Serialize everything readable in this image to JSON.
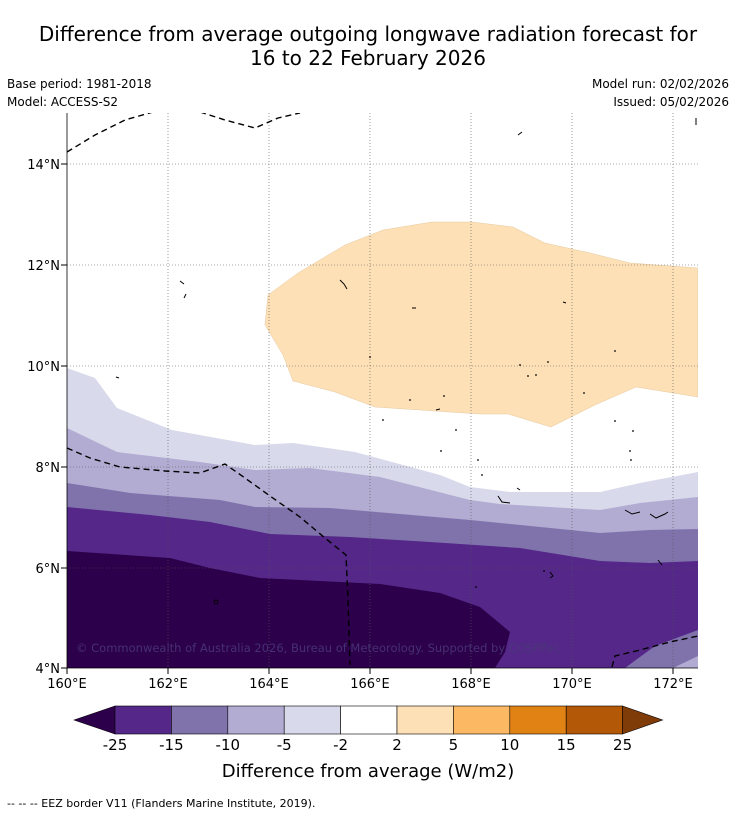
{
  "title_line1": "Difference from average outgoing longwave radiation forecast for",
  "title_line2": "16 to 22 February 2026",
  "base_period": "Base period: 1981-2018",
  "model": "Model: ACCESS-S2",
  "model_run": "Model run: 02/02/2026",
  "issued": "Issued: 05/02/2026",
  "lat_labels": [
    "14°N",
    "12°N",
    "10°N",
    "8°N",
    "6°N",
    "4°N"
  ],
  "lon_labels": [
    "160°E",
    "162°E",
    "164°E",
    "166°E",
    "168°E",
    "170°E",
    "172°E"
  ],
  "copyright": "© Commonwealth of Australia 2026, Bureau of Meteorology. Supported by COSPPac",
  "colorbar": {
    "ticks": [
      "-25",
      "-15",
      "-10",
      "-5",
      "-2",
      "2",
      "5",
      "10",
      "15",
      "25"
    ],
    "colors": [
      "#2d004b",
      "#542788",
      "#8073ac",
      "#b2abd2",
      "#d8daeb",
      "#ffffff",
      "#fee0b6",
      "#fdb863",
      "#e08214",
      "#b35806",
      "#7f3b08"
    ],
    "title": "Difference from average (W/m2)"
  },
  "footnote": "--  --  -- EEZ border V11 (Flanders Marine Institute, 2019)."
}
